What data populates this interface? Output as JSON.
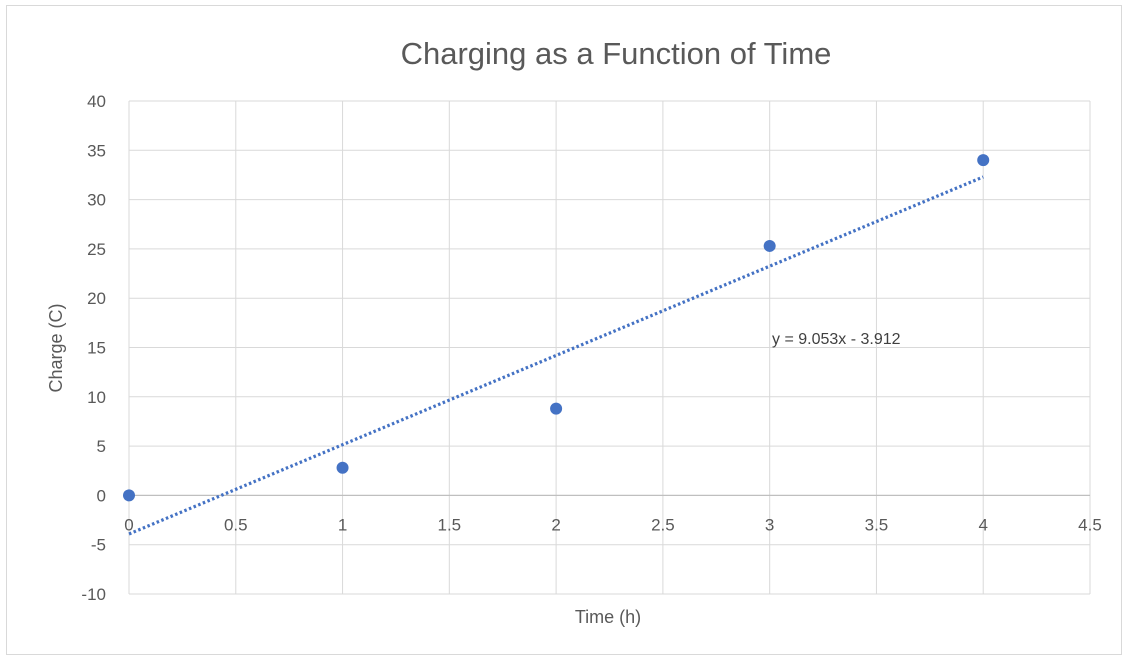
{
  "chart_data": {
    "type": "scatter",
    "title": "Charging as a Function of Time",
    "xlabel": "Time (h)",
    "ylabel": "Charge (C)",
    "xlim": [
      0,
      4.5
    ],
    "ylim": [
      -10,
      40
    ],
    "x_ticks": [
      "0",
      "0.5",
      "1",
      "1.5",
      "2",
      "2.5",
      "3",
      "3.5",
      "4",
      "4.5"
    ],
    "y_ticks": [
      "-10",
      "-5",
      "0",
      "5",
      "10",
      "15",
      "20",
      "25",
      "30",
      "35",
      "40"
    ],
    "grid": true,
    "legend": "none",
    "series": [
      {
        "x": [
          0,
          1,
          2,
          3,
          4
        ],
        "y": [
          0,
          2.8,
          8.8,
          25.3,
          34.0
        ],
        "color": "#4472c4"
      }
    ],
    "trendline": {
      "type": "linear",
      "slope": 9.053,
      "intercept": -3.912,
      "x_range": [
        0,
        4
      ],
      "label": "y = 9.053x - 3.912",
      "color": "#4472c4",
      "style": "dotted"
    }
  }
}
